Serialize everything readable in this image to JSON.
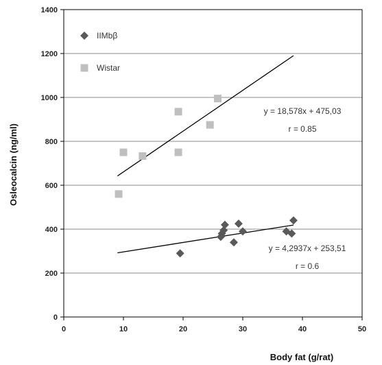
{
  "chart_data": {
    "type": "scatter",
    "xlabel": "Body fat (g/rat)",
    "ylabel": "Osleocalcin (ng/ml)",
    "xlim": [
      0,
      50
    ],
    "ylim": [
      0,
      1400
    ],
    "x_ticks": [
      "0",
      "10",
      "20",
      "30",
      "40",
      "50"
    ],
    "y_ticks": [
      "0",
      "200",
      "400",
      "600",
      "800",
      "1000",
      "1200",
      "1400"
    ],
    "grid": "horizontal",
    "legend_position": "top-left",
    "series": [
      {
        "name": "IIMbβ",
        "marker": "diamond",
        "color": "#595959",
        "points": [
          [
            19.5,
            290
          ],
          [
            26.3,
            365
          ],
          [
            26.5,
            380
          ],
          [
            26.8,
            395
          ],
          [
            27.0,
            420
          ],
          [
            28.5,
            340
          ],
          [
            29.3,
            425
          ],
          [
            30.0,
            390
          ],
          [
            37.3,
            390
          ],
          [
            38.2,
            380
          ],
          [
            38.5,
            440
          ]
        ],
        "trendline": {
          "x": [
            9,
            38.5
          ],
          "y": [
            292.2,
            418.8
          ]
        },
        "equation": "y = 4,2937x + 253,51",
        "r": "r = 0.6"
      },
      {
        "name": "Wistar",
        "marker": "square",
        "color": "#bfbfbf",
        "points": [
          [
            9.2,
            560
          ],
          [
            10.0,
            750
          ],
          [
            13.2,
            733
          ],
          [
            19.2,
            935
          ],
          [
            19.2,
            750
          ],
          [
            24.5,
            875
          ],
          [
            25.8,
            995
          ]
        ],
        "trendline": {
          "x": [
            9,
            38.5
          ],
          "y": [
            642.2,
            1190.3
          ]
        },
        "equation": "y = 18,578x + 475,03",
        "r": "r = 0.85"
      }
    ]
  }
}
